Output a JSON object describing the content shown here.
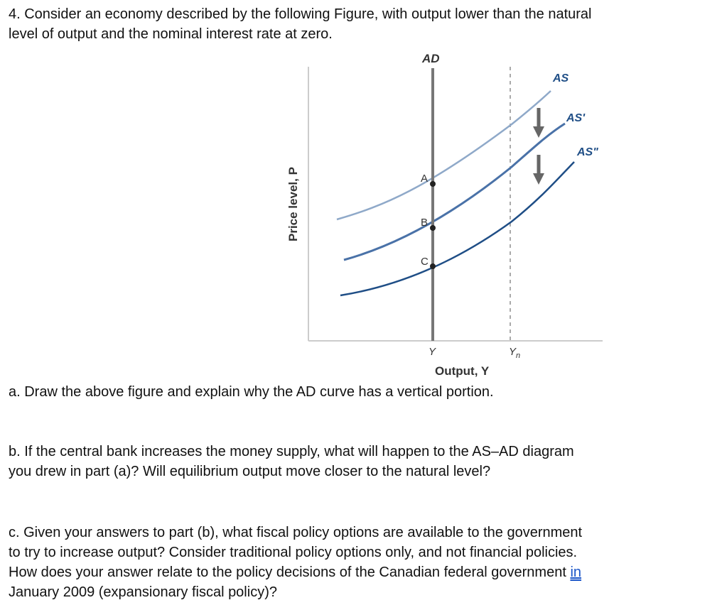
{
  "question": {
    "intro_line1": "4. Consider an economy described by the following Figure, with output lower than the natural",
    "intro_line2": "level of output and the nominal interest rate at zero.",
    "part_a": "a. Draw the above figure and explain why the AD curve has a vertical portion.",
    "part_b_line1": "b. If the central bank increases the money supply, what will happen to the AS–AD diagram",
    "part_b_line2": "you drew in part (a)? Will equilibrium output move closer to the natural level?",
    "part_c_line1": "c. Given your answers to part (b), what fiscal policy options are available to the government",
    "part_c_line2": "to try to increase output? Consider traditional policy options only, and not financial policies.",
    "part_c_line3_pre": "How does your answer relate to the policy decisions of the Canadian federal government ",
    "part_c_line3_link": "in",
    "part_c_line4": "January 2009 (expansionary fiscal policy)?"
  },
  "figure": {
    "ylabel": "Price level, P",
    "xlabel": "Output, Y",
    "ad_label": "AD",
    "as_label": "AS",
    "as1_label": "AS'",
    "as2_label": "AS\"",
    "y_tick": "Y",
    "yn_tick": "Y",
    "yn_sub": "n",
    "point_a": "A",
    "point_b": "B",
    "point_c": "C",
    "colors": {
      "as": "#8fa9c9",
      "as1": "#4a72a8",
      "as2": "#1f4e86",
      "ad": "#777777",
      "axis": "#cccccc",
      "dashed": "#aaaaaa",
      "arrow": "#666666"
    }
  }
}
